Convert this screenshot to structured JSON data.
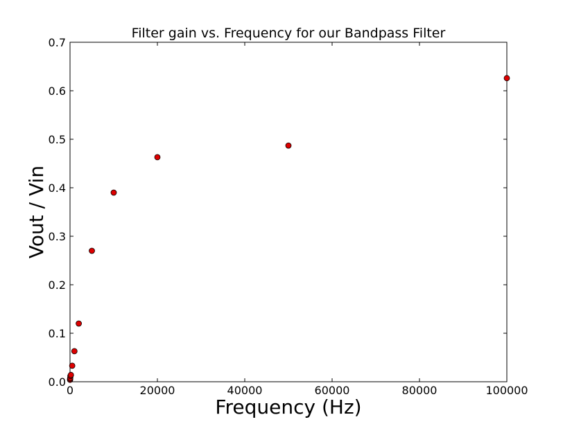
{
  "chart_data": {
    "type": "scatter",
    "title": "Filter gain vs. Frequency for our Bandpass Filter",
    "xlabel": "Frequency (Hz)",
    "ylabel": "Vout / Vin",
    "xlim": [
      0,
      100000
    ],
    "ylim": [
      0,
      0.7
    ],
    "xticks": [
      0,
      20000,
      40000,
      60000,
      80000,
      100000
    ],
    "xtick_labels": [
      "0",
      "20000",
      "40000",
      "60000",
      "80000",
      "100000"
    ],
    "yticks": [
      0.0,
      0.1,
      0.2,
      0.3,
      0.4,
      0.5,
      0.6,
      0.7
    ],
    "ytick_labels": [
      "0.0",
      "0.1",
      "0.2",
      "0.3",
      "0.4",
      "0.5",
      "0.6",
      "0.7"
    ],
    "grid": false,
    "marker_color": "#dd0000",
    "marker_edge": "#000000",
    "series": [
      {
        "x": [
          10,
          20,
          50,
          100,
          200,
          500,
          1000,
          2000,
          5000,
          10000,
          20000,
          50000,
          100000
        ],
        "y": [
          0.004,
          0.006,
          0.008,
          0.012,
          0.014,
          0.033,
          0.063,
          0.12,
          0.27,
          0.39,
          0.463,
          0.487,
          0.626
        ]
      }
    ]
  }
}
